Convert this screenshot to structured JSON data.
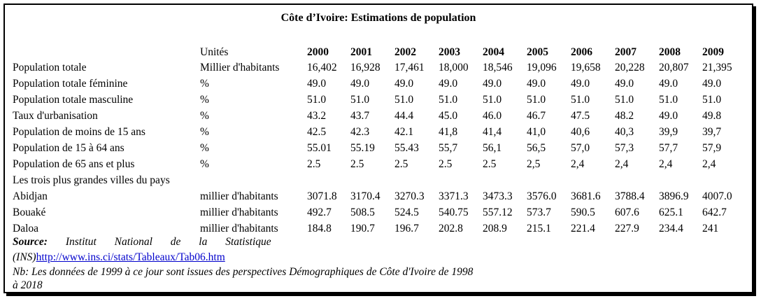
{
  "title": "Côte d’Ivoire: Estimations de population",
  "header": {
    "units_label": "Unités",
    "years": [
      "2000",
      "2001",
      "2002",
      "2003",
      "2004",
      "2005",
      "2006",
      "2007",
      "2008",
      "2009"
    ]
  },
  "rows": [
    {
      "label": "Population totale",
      "unit": "Millier d'habitants",
      "values": [
        "16,402",
        "16,928",
        "17,461",
        "18,000",
        "18,546",
        "19,096",
        "19,658",
        "20,228",
        "20,807",
        "21,395"
      ]
    },
    {
      "label": "Population totale féminine",
      "unit": "%",
      "values": [
        "49.0",
        "49.0",
        "49.0",
        "49.0",
        "49.0",
        "49.0",
        "49.0",
        "49.0",
        "49.0",
        "49.0"
      ]
    },
    {
      "label": "Population totale masculine",
      "unit": "%",
      "values": [
        "51.0",
        "51.0",
        "51.0",
        "51.0",
        "51.0",
        "51.0",
        "51.0",
        "51.0",
        "51.0",
        "51.0"
      ]
    },
    {
      "label": "Taux d'urbanisation",
      "unit": "%",
      "values": [
        "43.2",
        "43.7",
        "44.4",
        "45.0",
        "46.0",
        "46.7",
        "47.5",
        "48.2",
        "49.0",
        "49.8"
      ]
    },
    {
      "label": "Population de moins de 15 ans",
      "unit": "%",
      "values": [
        "42.5",
        "42.3",
        "42.1",
        "41,8",
        "41,4",
        "41,0",
        "40,6",
        "40,3",
        "39,9",
        "39,7"
      ]
    },
    {
      "label": "Population de 15 à 64 ans",
      "unit": "%",
      "values": [
        "55.01",
        "55.19",
        "55.43",
        "55,7",
        "56,1",
        "56,5",
        "57,0",
        "57,3",
        "57,7",
        "57,9"
      ]
    },
    {
      "label": "Population de 65 ans et plus",
      "unit": "%",
      "values": [
        "2.5",
        "2.5",
        "2.5",
        "2.5",
        "2.5",
        "2,5",
        "2,4",
        "2,4",
        "2,4",
        "2,4"
      ]
    },
    {
      "label": "Les trois plus grandes villes du pays",
      "unit": "",
      "values": []
    },
    {
      "label": "Abidjan",
      "unit": "millier d'habitants",
      "values": [
        "3071.8",
        "3170.4",
        "3270.3",
        "3371.3",
        "3473.3",
        "3576.0",
        "3681.6",
        "3788.4",
        "3896.9",
        "4007.0"
      ]
    },
    {
      "label": "Bouaké",
      "unit": "millier d'habitants",
      "values": [
        "492.7",
        "508.5",
        "524.5",
        "540.75",
        "557.12",
        "573.7",
        "590.5",
        "607.6",
        "625.1",
        "642.7"
      ]
    },
    {
      "label": "Daloa",
      "unit": "millier d'habitants",
      "values": [
        "184.8",
        "190.7",
        "196.7",
        "202.8",
        "208.9",
        "215.1",
        "221.4",
        "227.9",
        "234.4",
        "241"
      ]
    }
  ],
  "source": {
    "label": "Source:",
    "text": "Institut National de la Statistique",
    "prefix": "(INS)",
    "link": "http://www.ins.ci/stats/Tableaux/Tab06.htm"
  },
  "note": {
    "line1": "Nb: Les données de 1999 à ce jour sont issues des perspectives Démographiques de Côte d'Ivoire de 1998",
    "line2": "à 2018"
  }
}
